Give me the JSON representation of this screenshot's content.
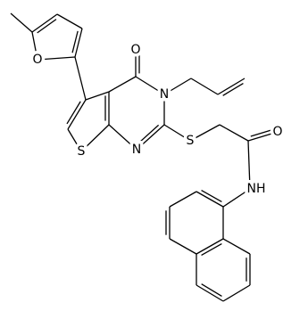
{
  "atoms": [
    "O",
    "O",
    "N",
    "S",
    "N",
    "S",
    "O",
    "NH"
  ]
}
